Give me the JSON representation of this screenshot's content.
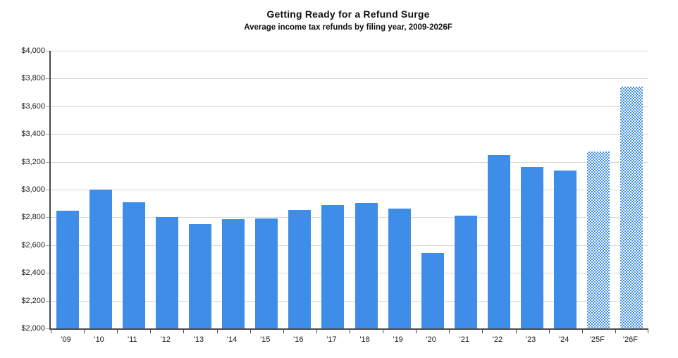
{
  "chart_data": {
    "type": "bar",
    "title": "Getting Ready for a Refund Surge",
    "subtitle": "Average income tax refunds by filing year, 2009-2026F",
    "categories": [
      "'09",
      "'10",
      "'11",
      "'12",
      "'13",
      "'14",
      "'15",
      "'16",
      "'17",
      "'18",
      "'19",
      "'20",
      "'21",
      "'22",
      "'23",
      "'24",
      "'25F",
      "'26F"
    ],
    "values": [
      2850,
      3000,
      2910,
      2800,
      2750,
      2785,
      2790,
      2855,
      2890,
      2905,
      2865,
      2545,
      2810,
      3250,
      3165,
      3135,
      3275,
      3740
    ],
    "forecast": [
      false,
      false,
      false,
      false,
      false,
      false,
      false,
      false,
      false,
      false,
      false,
      false,
      false,
      false,
      false,
      false,
      true,
      true
    ],
    "ylabel": "",
    "xlabel": "",
    "ylim": [
      2000,
      4000
    ],
    "ytick_step": 200,
    "y_tick_labels": [
      "$2,000",
      "$2,200",
      "$2,400",
      "$2,600",
      "$2,800",
      "$3,000",
      "$3,200",
      "$3,400",
      "$3,600",
      "$3,800",
      "$4,000"
    ],
    "grid": true,
    "legend_position": "none",
    "colors": {
      "bar": "#3E8EE9",
      "forecast_pattern": "#3E8EE9",
      "forecast_background": "#FFFFFF",
      "gridline": "#D9D9D9",
      "axis": "#4A4A4A",
      "tick": "#A6A6A6",
      "text": "#1A1A1A",
      "title": "#111111"
    }
  }
}
